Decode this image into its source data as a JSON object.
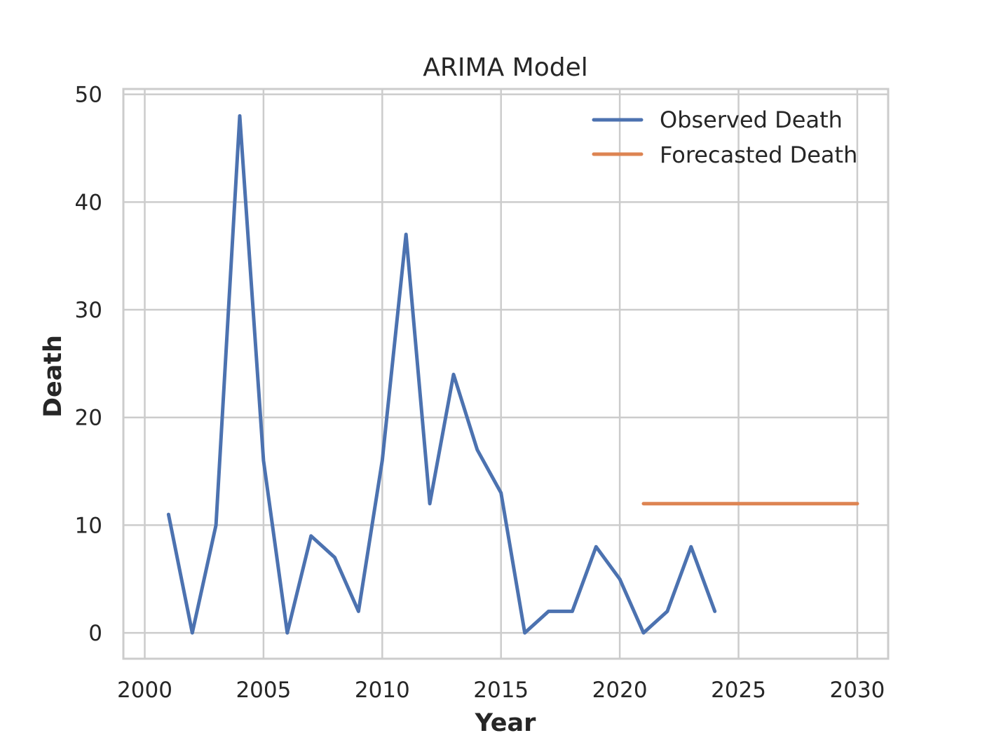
{
  "chart_data": {
    "type": "line",
    "title": "ARIMA Model",
    "xlabel": "Year",
    "ylabel": "Death",
    "xlim": [
      1999.1,
      2031.3
    ],
    "ylim": [
      -2.4,
      50.5
    ],
    "xticks": [
      2000,
      2005,
      2010,
      2015,
      2020,
      2025,
      2030
    ],
    "yticks": [
      0,
      10,
      20,
      30,
      40,
      50
    ],
    "grid": true,
    "legend_position": "top-right",
    "series": [
      {
        "name": "Observed Death",
        "color": "#4c72b0",
        "x": [
          2001,
          2002,
          2003,
          2004,
          2005,
          2006,
          2007,
          2008,
          2009,
          2010,
          2011,
          2012,
          2013,
          2014,
          2015,
          2016,
          2017,
          2018,
          2019,
          2020,
          2021,
          2022,
          2023,
          2024
        ],
        "y": [
          11,
          0,
          10,
          48,
          16,
          0,
          9,
          7,
          2,
          16,
          37,
          12,
          24,
          17,
          13,
          0,
          2,
          2,
          8,
          5,
          0,
          2,
          8,
          2
        ]
      },
      {
        "name": "Forecasted Death",
        "color": "#dd8452",
        "x": [
          2021,
          2022,
          2023,
          2024,
          2025,
          2026,
          2027,
          2028,
          2029,
          2030
        ],
        "y": [
          12,
          12,
          12,
          12,
          12,
          12,
          12,
          12,
          12,
          12
        ]
      }
    ]
  }
}
